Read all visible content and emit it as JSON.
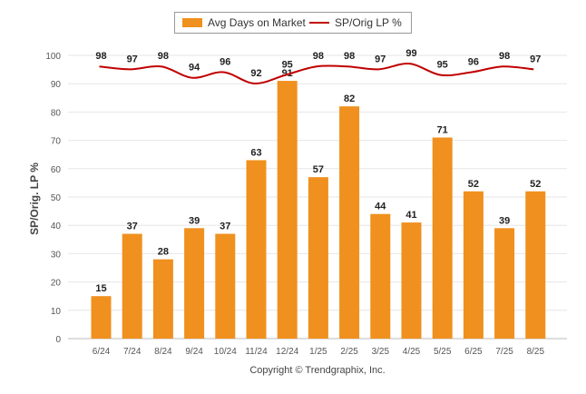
{
  "chart_data": {
    "type": "bar",
    "categories": [
      "6/24",
      "7/24",
      "8/24",
      "9/24",
      "10/24",
      "11/24",
      "12/24",
      "1/25",
      "2/25",
      "3/25",
      "4/25",
      "5/25",
      "6/25",
      "7/25",
      "8/25"
    ],
    "series": [
      {
        "name": "Avg Days on Market",
        "type": "bar",
        "color": "#F0901E",
        "values": [
          15,
          37,
          28,
          39,
          37,
          63,
          91,
          57,
          82,
          44,
          41,
          71,
          52,
          39,
          52
        ]
      },
      {
        "name": "SP/Orig LP %",
        "type": "line",
        "color": "#C00000",
        "values": [
          98,
          97,
          98,
          94,
          96,
          92,
          95,
          98,
          98,
          97,
          99,
          95,
          96,
          98,
          97
        ]
      }
    ],
    "ylabel": "SP/Orig. LP %",
    "ylim": [
      0,
      100
    ],
    "yticks": [
      0,
      10,
      20,
      30,
      40,
      50,
      60,
      70,
      80,
      90,
      100
    ],
    "grid": true,
    "legend": "top-center"
  },
  "footer": "Copyright © Trendgraphix, Inc."
}
